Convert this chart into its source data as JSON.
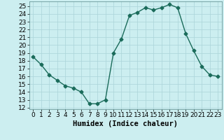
{
  "x": [
    0,
    1,
    2,
    3,
    4,
    5,
    6,
    7,
    8,
    9,
    10,
    11,
    12,
    13,
    14,
    15,
    16,
    17,
    18,
    19,
    20,
    21,
    22,
    23
  ],
  "y": [
    18.5,
    17.5,
    16.2,
    15.5,
    14.8,
    14.5,
    14.0,
    12.5,
    12.5,
    13.0,
    19.0,
    20.8,
    23.8,
    24.2,
    24.8,
    24.5,
    24.8,
    25.2,
    24.8,
    21.5,
    19.3,
    17.3,
    16.2,
    16.0
  ],
  "xlabel": "Humidex (Indice chaleur)",
  "xlim": [
    -0.5,
    23.5
  ],
  "ylim": [
    11.8,
    25.6
  ],
  "yticks": [
    12,
    13,
    14,
    15,
    16,
    17,
    18,
    19,
    20,
    21,
    22,
    23,
    24,
    25
  ],
  "xticks": [
    0,
    1,
    2,
    3,
    4,
    5,
    6,
    7,
    8,
    9,
    10,
    11,
    12,
    13,
    14,
    15,
    16,
    17,
    18,
    19,
    20,
    21,
    22,
    23
  ],
  "line_color": "#1a6b5a",
  "marker": "D",
  "marker_size": 2.5,
  "bg_color": "#cceef0",
  "grid_color": "#aad4d8",
  "label_fontsize": 7.5,
  "tick_fontsize": 6.5
}
